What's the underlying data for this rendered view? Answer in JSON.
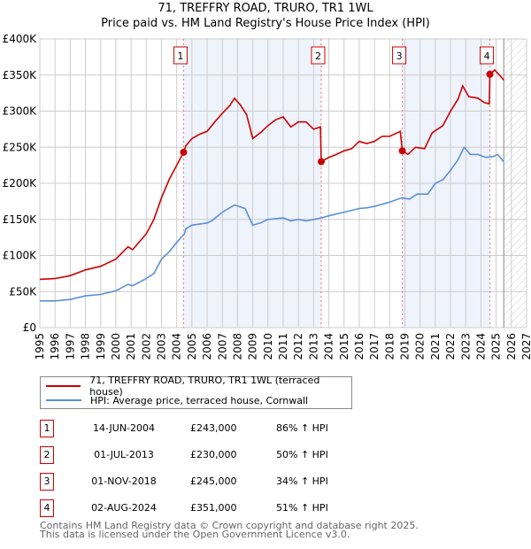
{
  "title_line1": "71, TREFFRY ROAD, TRURO, TR1 1WL",
  "title_line2": "Price paid vs. HM Land Registry's House Price Index (HPI)",
  "legend": {
    "property": "71, TREFFRY ROAD, TRURO, TR1 1WL (terraced house)",
    "hpi": "HPI: Average price, terraced house, Cornwall"
  },
  "colors": {
    "property": "#cc0000",
    "hpi": "#5b8fd6",
    "shade": "#eef3fc"
  },
  "sales": [
    {
      "n": "1",
      "date": "14-JUN-2004",
      "price": "£243,000",
      "hpi": "86% ↑ HPI",
      "x": 2004.45,
      "y": 243
    },
    {
      "n": "2",
      "date": "01-JUL-2013",
      "price": "£230,000",
      "hpi": "50% ↑ HPI",
      "x": 2013.5,
      "y": 230
    },
    {
      "n": "3",
      "date": "01-NOV-2018",
      "price": "£245,000",
      "hpi": "34% ↑ HPI",
      "x": 2018.83,
      "y": 245
    },
    {
      "n": "4",
      "date": "02-AUG-2024",
      "price": "£351,000",
      "hpi": "51% ↑ HPI",
      "x": 2024.59,
      "y": 351
    }
  ],
  "footer_line1": "Contains HM Land Registry data © Crown copyright and database right 2025.",
  "footer_line2": "This data is licensed under the Open Government Licence v3.0.",
  "chart_data": {
    "type": "line",
    "title": "71, TREFFRY ROAD, TRURO, TR1 1WL — Price paid vs. HM Land Registry's House Price Index (HPI)",
    "xlim": [
      1995,
      2027
    ],
    "ylim": [
      0,
      400
    ],
    "y_unit": "£K",
    "yticks": [
      0,
      50,
      100,
      150,
      200,
      250,
      300,
      350,
      400
    ],
    "ytick_labels": [
      "£0",
      "£50K",
      "£100K",
      "£150K",
      "£200K",
      "£250K",
      "£300K",
      "£350K",
      "£400K"
    ],
    "xticks": [
      "1995",
      "1996",
      "1997",
      "1998",
      "1999",
      "2000",
      "2001",
      "2002",
      "2003",
      "2004",
      "2005",
      "2006",
      "2007",
      "2008",
      "2009",
      "2010",
      "2011",
      "2012",
      "2013",
      "2014",
      "2015",
      "2016",
      "2017",
      "2018",
      "2019",
      "2020",
      "2021",
      "2022",
      "2023",
      "2024",
      "2025",
      "2026",
      "2027"
    ],
    "forecast_start": 2025.5,
    "grid": true,
    "legend_position": "below",
    "series": [
      {
        "name": "71, TREFFRY ROAD, TRURO, TR1 1WL (terraced house)",
        "color": "#cc0000",
        "x": [
          1995,
          1996,
          1997,
          1998,
          1999,
          2000,
          2000.8,
          2001.1,
          2002,
          2002.5,
          2003,
          2003.5,
          2004,
          2004.45,
          2004.6,
          2005,
          2005.5,
          2006,
          2006.5,
          2007,
          2007.5,
          2007.8,
          2008.2,
          2008.6,
          2009,
          2009.5,
          2010,
          2010.5,
          2011,
          2011.5,
          2012,
          2012.5,
          2013,
          2013.45,
          2013.5,
          2014,
          2014.5,
          2015,
          2015.5,
          2016,
          2016.5,
          2017,
          2017.5,
          2018,
          2018.7,
          2018.83,
          2019.2,
          2019.7,
          2020.3,
          2020.8,
          2021.5,
          2022,
          2022.5,
          2022.8,
          2023.2,
          2023.8,
          2024.2,
          2024.55,
          2024.59,
          2024.9,
          2025.3,
          2025.5
        ],
        "y": [
          67,
          68,
          72,
          80,
          85,
          95,
          112,
          108,
          130,
          150,
          180,
          205,
          225,
          243,
          252,
          262,
          268,
          272,
          285,
          297,
          308,
          318,
          308,
          295,
          262,
          270,
          280,
          288,
          292,
          278,
          285,
          285,
          275,
          278,
          230,
          236,
          240,
          245,
          248,
          258,
          255,
          258,
          265,
          265,
          272,
          245,
          240,
          250,
          248,
          270,
          280,
          300,
          317,
          335,
          320,
          318,
          312,
          310,
          351,
          357,
          348,
          343
        ]
      },
      {
        "name": "HPI: Average price, terraced house, Cornwall",
        "color": "#5b8fd6",
        "x": [
          1995,
          1996,
          1997,
          1998,
          1999,
          2000,
          2000.8,
          2001.1,
          2002,
          2002.5,
          2003,
          2003.5,
          2004,
          2004.5,
          2004.6,
          2005,
          2006,
          2006.3,
          2007,
          2007.8,
          2008.5,
          2009,
          2009.5,
          2010,
          2011,
          2011.5,
          2012,
          2012.5,
          2013,
          2013.5,
          2014,
          2015,
          2016,
          2016.5,
          2017,
          2018,
          2018.8,
          2019.3,
          2019.8,
          2020.5,
          2021,
          2021.5,
          2022,
          2022.5,
          2022.9,
          2023.3,
          2023.8,
          2024.3,
          2024.8,
          2025.1,
          2025.5
        ],
        "y": [
          37,
          37,
          39,
          44,
          46,
          51,
          60,
          58,
          68,
          75,
          95,
          105,
          118,
          130,
          137,
          142,
          145,
          148,
          160,
          170,
          165,
          142,
          145,
          150,
          152,
          148,
          150,
          148,
          150,
          152,
          155,
          160,
          165,
          166,
          168,
          174,
          180,
          178,
          185,
          185,
          200,
          205,
          218,
          233,
          250,
          240,
          240,
          236,
          237,
          240,
          230
        ]
      }
    ]
  }
}
